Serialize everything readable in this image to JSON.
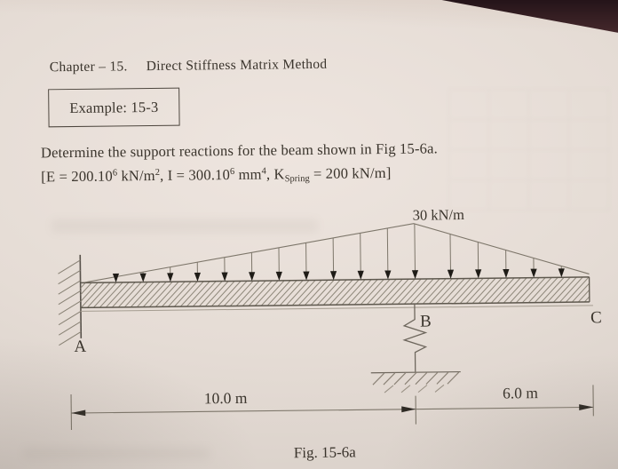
{
  "colors": {
    "paper": "#e5dcd5",
    "ink": "#3a342c",
    "line": "#7b7466",
    "corner": "#211217"
  },
  "header": {
    "chapter_label": "Chapter – 15.",
    "chapter_title": "Direct Stiffness Matrix Method"
  },
  "example_box": {
    "label": "Example: 15-3"
  },
  "problem": {
    "line1": "Determine the support reactions for the beam shown in Fig 15-6a.",
    "eq": {
      "p1": "[E = 200.10",
      "s1": "6",
      "p2": " kN/m",
      "s2": "2",
      "p3": ", I = 300.10",
      "s3": "6",
      "p4": " mm",
      "s4": "4",
      "p5": ", K",
      "sub": "Spring",
      "p6": " = 200 kN/m]"
    }
  },
  "figure": {
    "load_label": "30 kN/m",
    "node_labels": {
      "a": "A",
      "b": "B",
      "c": "C"
    },
    "dimensions": {
      "left_span": "10.0 m",
      "right_span": "6.0 m"
    },
    "caption": "Fig. 15-6a"
  }
}
